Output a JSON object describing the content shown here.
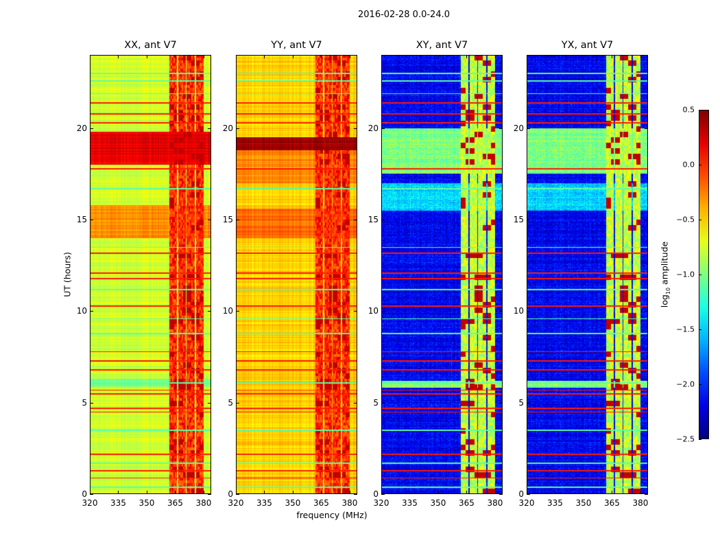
{
  "chart_data": {
    "type": "heatmap",
    "title": "2016-02-28 0.0-24.0",
    "xlabel": "frequency (MHz)",
    "ylabel": "UT (hours)",
    "xlim": [
      320,
      384
    ],
    "ylim": [
      0,
      24
    ],
    "xticks": [
      "320",
      "335",
      "350",
      "365",
      "380"
    ],
    "yticks": [
      "0",
      "5",
      "10",
      "15",
      "20"
    ],
    "colorbar": {
      "label_main": "log",
      "label_sub": "10",
      "label_rest": " amplitude",
      "range": [
        -2.5,
        0.5
      ],
      "ticks": [
        "0.5",
        "0.0",
        "−0.5",
        "−1.0",
        "−1.5",
        "−2.0",
        "−2.5"
      ],
      "colormap": "jet"
    },
    "rfi_columns_mhz": [
      [
        362,
        366
      ],
      [
        366.5,
        370.5
      ],
      [
        371,
        375.5
      ],
      [
        376,
        380
      ]
    ],
    "bad_times_red": [
      0.9,
      1.3,
      2.2,
      4.5,
      4.7,
      5.5,
      5.7,
      6.8,
      7.3,
      7.8,
      10.3,
      11.8,
      12.1,
      13.2,
      17.8,
      20.3,
      20.8,
      21.4
    ],
    "bad_times_cyan": [
      0.4,
      1.7,
      3.5,
      6.1,
      8.8,
      9.6,
      11.2,
      13.5,
      16.7,
      21.9,
      22.6,
      23.0
    ],
    "panels": [
      {
        "title": "XX, ant V7",
        "baseline": -0.75,
        "rfi_level": 0.0,
        "bands": [
          {
            "t": [
              18.0,
              19.8
            ],
            "v": 0.2
          },
          {
            "t": [
              14.0,
              15.8
            ],
            "v": -0.3
          },
          {
            "t": [
              5.8,
              6.3
            ],
            "v": -1.0
          }
        ]
      },
      {
        "title": "YY, ant V7",
        "baseline": -0.5,
        "rfi_level": 0.0,
        "bands": [
          {
            "t": [
              18.8,
              19.5
            ],
            "v": 0.4
          },
          {
            "t": [
              14.0,
              15.6
            ],
            "v": -0.2
          },
          {
            "t": [
              17.0,
              18.8
            ],
            "v": -0.3
          }
        ]
      },
      {
        "title": "XY, ant V7",
        "baseline": -2.15,
        "rfi_level": -0.8,
        "bands": [
          {
            "t": [
              17.5,
              20.0
            ],
            "v": -1.0
          },
          {
            "t": [
              15.5,
              17.0
            ],
            "v": -1.5
          },
          {
            "t": [
              5.8,
              6.2
            ],
            "v": -1.0
          }
        ]
      },
      {
        "title": "YX, ant V7",
        "baseline": -2.15,
        "rfi_level": -0.8,
        "bands": [
          {
            "t": [
              17.5,
              20.0
            ],
            "v": -1.0
          },
          {
            "t": [
              15.5,
              17.0
            ],
            "v": -1.5
          },
          {
            "t": [
              5.8,
              6.2
            ],
            "v": -1.0
          }
        ]
      }
    ]
  }
}
